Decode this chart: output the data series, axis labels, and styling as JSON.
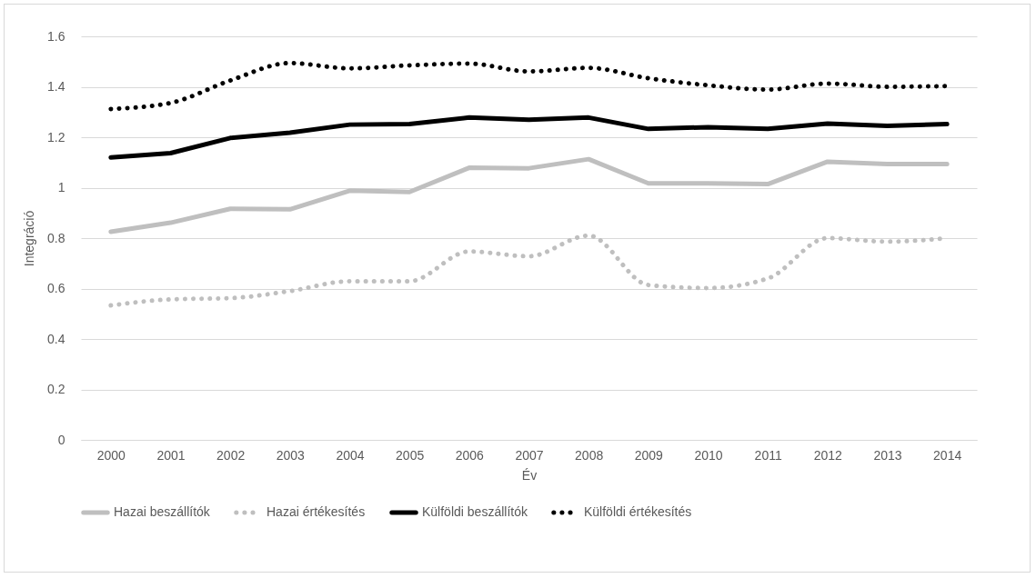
{
  "chart_data": {
    "type": "line",
    "xlabel": "Év",
    "ylabel": "Integráció",
    "categories": [
      "2000",
      "2001",
      "2002",
      "2003",
      "2004",
      "2005",
      "2006",
      "2007",
      "2008",
      "2009",
      "2010",
      "2011",
      "2012",
      "2013",
      "2014"
    ],
    "series": [
      {
        "name": "Hazai beszállítók",
        "color": "#bfbfbf",
        "line_style": "solid",
        "values": [
          0.825,
          0.861,
          0.916,
          0.914,
          0.988,
          0.983,
          1.079,
          1.077,
          1.113,
          1.017,
          1.017,
          1.014,
          1.103,
          1.094,
          1.094
        ]
      },
      {
        "name": "Hazai értékesítés",
        "color": "#bfbfbf",
        "line_style": "dotted",
        "values": [
          0.533,
          0.557,
          0.562,
          0.59,
          0.629,
          0.629,
          0.747,
          0.728,
          0.81,
          0.614,
          0.602,
          0.64,
          0.8,
          0.786,
          0.8
        ]
      },
      {
        "name": "Külföldi beszállítók",
        "color": "#000000",
        "line_style": "solid",
        "values": [
          1.12,
          1.137,
          1.197,
          1.218,
          1.25,
          1.252,
          1.278,
          1.269,
          1.278,
          1.233,
          1.24,
          1.233,
          1.254,
          1.245,
          1.252
        ]
      },
      {
        "name": "Külföldi értékesítés",
        "color": "#000000",
        "line_style": "dotted",
        "values": [
          1.312,
          1.336,
          1.425,
          1.494,
          1.473,
          1.485,
          1.492,
          1.461,
          1.475,
          1.434,
          1.406,
          1.389,
          1.413,
          1.4,
          1.403
        ]
      }
    ],
    "ylim": [
      0,
      1.6
    ],
    "yticks": [
      0,
      0.2,
      0.4,
      0.6,
      0.8,
      1,
      1.2,
      1.4,
      1.6
    ],
    "grid": "y",
    "legend": "bottom"
  }
}
